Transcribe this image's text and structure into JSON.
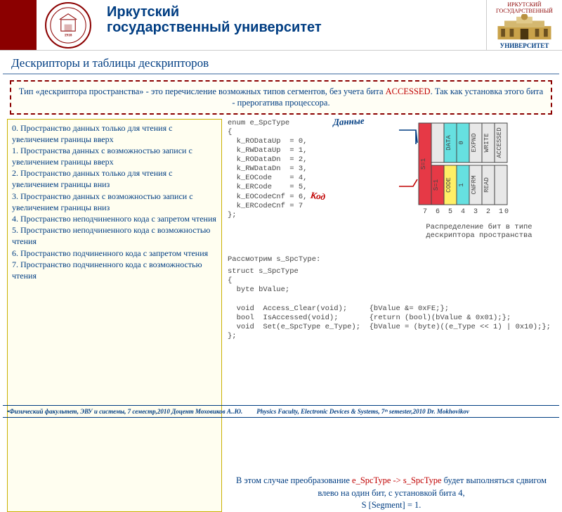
{
  "header": {
    "title_line1": "Иркутский",
    "title_line2": "государственный университет",
    "corner_top": "ИРКУТСКИЙ ГОСУДАРСТВЕННЫЙ",
    "corner_bottom": "УНИВЕРСИТЕТ"
  },
  "slide_title": "Дескрипторы и таблицы дескрипторов",
  "note": {
    "text1": "Тип «дескриптора пространства» - это перечисление возможных типов сегментов, без учета бита ",
    "accent": "ACCESSED",
    "text2": ". Так как установка этого бита - прерогатива процессора."
  },
  "left_items": [
    "0. Пространство данных только для чтения с увеличением границы вверх",
    "1. Пространства данных с возможностью записи с увеличением границы вверх",
    "2. Пространство данных только для чтения с увеличением границы вниз",
    "3. Пространство данных с возможностью записи с увеличением границы вниз",
    "4. Пространство неподчиненного кода с запретом чтения",
    "5. Пространство неподчиненного кода с возможностью чтения",
    "6. Пространство подчиненного кода с запретом чтения",
    "7. Пространство подчиненного кода с возможностью чтения"
  ],
  "code": {
    "enum_header": "enum e_SpcType",
    "enum_body": "{\n  k_RODataUp  = 0,\n  k_RWDataUp  = 1,\n  k_RODataDn  = 2,\n  k_RWDataDn  = 3,\n  k_EOCode    = 4,\n  k_ERCode    = 5,\n  k_EOCodeCnf = 6,\n  k_ERCodeCnf = 7\n};",
    "consider": "Рассмотрим s_SpcType:",
    "struct_block": "struct s_SpcType\n{\n  byte bValue;\n\n  void  Access_Clear(void);     {bValue &= 0xFE;};\n  bool  IsAccessed(void);       {return (bool)(bValue & 0x01);};\n  void  Set(e_SpcType e_Type);  {bValue = (byte)((e_Type << 1) | 0x10);};\n};"
  },
  "diagram": {
    "label_data": "Данные",
    "label_code": "Код",
    "bits": [
      "7",
      "6",
      "5",
      "4",
      "3",
      "2",
      "1",
      "0"
    ],
    "cols_top": [
      "",
      "DATA",
      "0",
      "EXPND",
      "WRITE",
      "ACCESSED"
    ],
    "cols_bot": [
      "S=1",
      "CODE",
      "1",
      "CNFRM",
      "READ",
      ""
    ],
    "colors": {
      "s1": "#e63946",
      "code0": "#66e0e0",
      "code1": "#ffef66",
      "bit4": "#66e0e0",
      "default": "#e8e8e8",
      "border": "#444444"
    },
    "caption": "Распределение бит в типе дескриптора пространства"
  },
  "bottom": {
    "p1a": "В этом случае преобразование ",
    "p1r": "e_SpcType -> s_SpcType",
    "p1b": " будет выполняться сдвигом влево на один бит, с установкой бита 4,",
    "p2": "S [Segment] = 1."
  },
  "footer": {
    "left": "•Физический факультет, ЭВУ и системы, 7 семестр,2010 Доцент Моховиков А..Ю.",
    "right": "Physics Faculty, Electronic Devices & Systems, 7ᵗʰ semester,2010   Dr. Mokhovikov"
  },
  "colors": {
    "brand_blue": "#003d82",
    "brand_red": "#8b0000",
    "accent_red": "#c00000"
  }
}
